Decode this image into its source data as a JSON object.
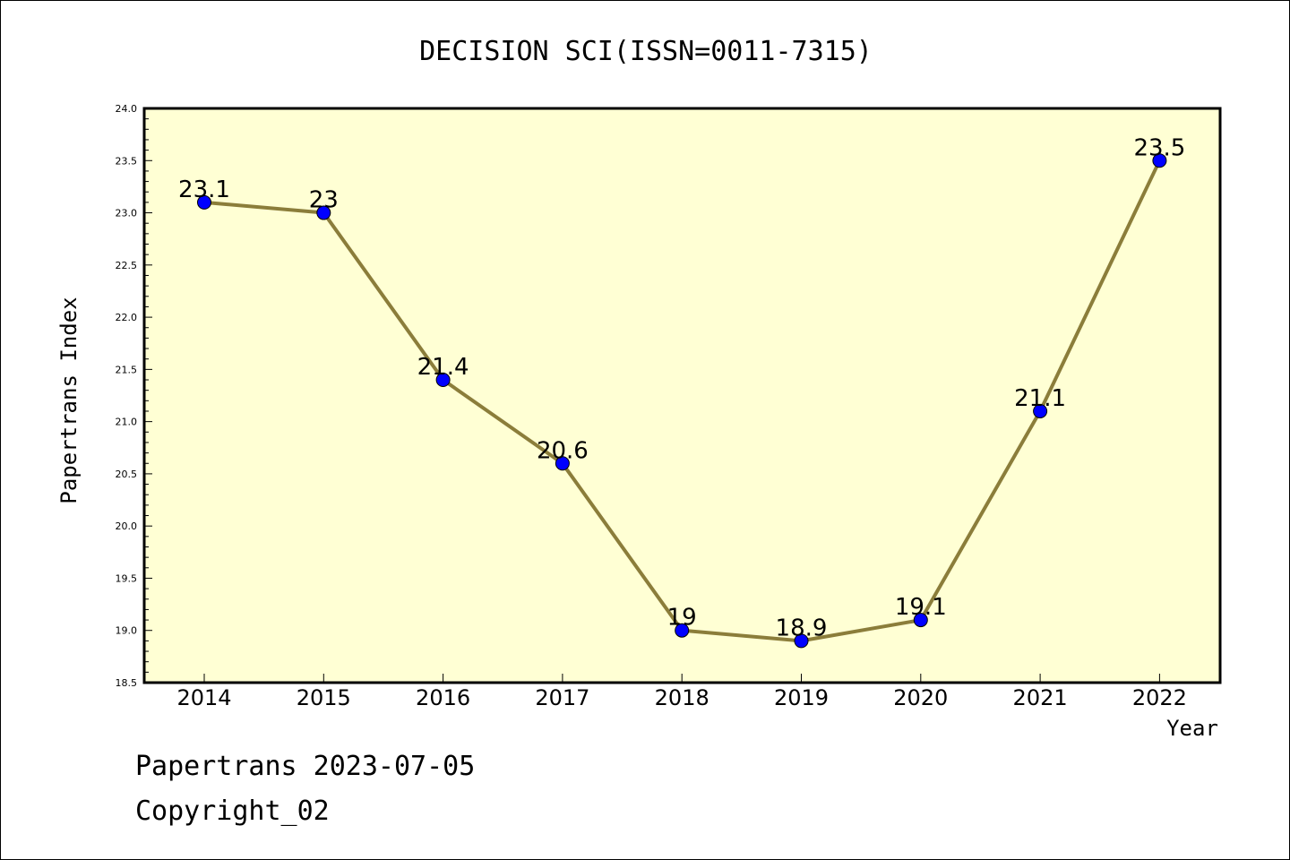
{
  "chart_data": {
    "type": "line",
    "title": "DECISION SCI(ISSN=0011-7315)",
    "xlabel": "Year",
    "ylabel": "Papertrans Index",
    "categories": [
      "2014",
      "2015",
      "2016",
      "2017",
      "2018",
      "2019",
      "2020",
      "2021",
      "2022"
    ],
    "series": [
      {
        "values": [
          23.1,
          23.0,
          21.4,
          20.6,
          19.0,
          18.9,
          19.1,
          21.1,
          23.5
        ]
      }
    ],
    "data_labels": [
      "23.1",
      "23",
      "21.4",
      "20.6",
      "19",
      "18.9",
      "19.1",
      "21.1",
      "23.5"
    ],
    "ylim": [
      18.5,
      24.0
    ],
    "yticks": [
      "18.5",
      "19.0",
      "19.5",
      "20.0",
      "20.5",
      "21.0",
      "21.5",
      "22.0",
      "22.5",
      "23.0",
      "23.5",
      "24.0"
    ],
    "grid": false,
    "colors": {
      "plot_background": "#ffffd4",
      "line": "#8b7d3a",
      "marker": "#0000ff"
    }
  },
  "footer": {
    "line1": "Papertrans 2023-07-05",
    "line2": "Copyright_02"
  }
}
